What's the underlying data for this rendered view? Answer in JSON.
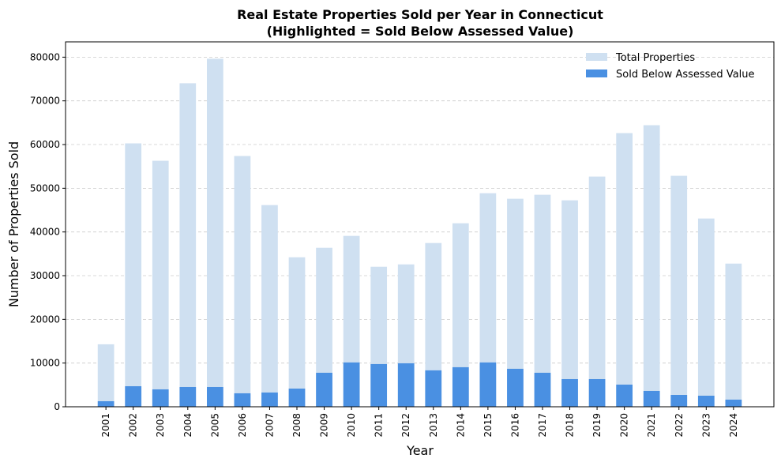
{
  "chart_data": {
    "type": "bar",
    "title": "Real Estate Properties Sold per Year in Connecticut",
    "subtitle": "(Highlighted = Sold Below Assessed Value)",
    "xlabel": "Year",
    "ylabel": "Number of Properties Sold",
    "ylim": [
      0,
      83500
    ],
    "yticks": [
      0,
      10000,
      20000,
      30000,
      40000,
      50000,
      60000,
      70000,
      80000
    ],
    "grid": "y-dashed",
    "legend_position": "top-right",
    "categories": [
      "2001",
      "2002",
      "2003",
      "2004",
      "2005",
      "2006",
      "2007",
      "2008",
      "2009",
      "2010",
      "2011",
      "2012",
      "2013",
      "2014",
      "2015",
      "2016",
      "2017",
      "2018",
      "2019",
      "2020",
      "2021",
      "2022",
      "2023",
      "2024"
    ],
    "series": [
      {
        "name": "Total Properties",
        "color": "#cfe0f1",
        "values": [
          14300,
          60270,
          56290,
          74030,
          79640,
          57380,
          46150,
          34210,
          36380,
          39100,
          32040,
          32580,
          37470,
          41990,
          48870,
          47600,
          48510,
          47240,
          52670,
          62620,
          64430,
          52850,
          43080,
          32760
        ]
      },
      {
        "name": "Sold Below Assessed Value",
        "color": "#4a90e2",
        "values": [
          1270,
          4700,
          3980,
          4520,
          4520,
          3080,
          3260,
          4160,
          7780,
          10140,
          9770,
          9950,
          8330,
          9050,
          10140,
          8690,
          7780,
          6330,
          6330,
          5070,
          3620,
          2710,
          2530,
          1630
        ]
      }
    ]
  }
}
